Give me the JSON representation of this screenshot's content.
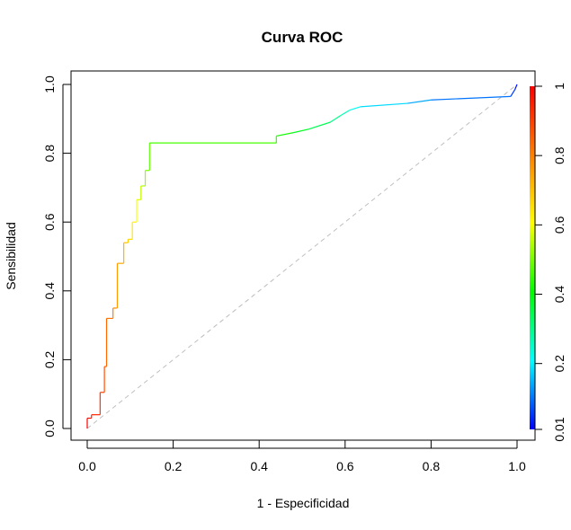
{
  "chart_data": {
    "type": "line",
    "title": "Curva ROC",
    "xlabel": "1 - Especificidad",
    "ylabel": "Sensibilidad",
    "xlim": [
      0,
      1
    ],
    "ylim": [
      0,
      1
    ],
    "x_ticks": [
      "0.0",
      "0.2",
      "0.4",
      "0.6",
      "0.8",
      "1.0"
    ],
    "y_ticks": [
      "0.0",
      "0.2",
      "0.4",
      "0.6",
      "0.8",
      "1.0"
    ],
    "grid": false,
    "diagonal_reference": {
      "x": [
        0,
        1
      ],
      "y": [
        0,
        1
      ],
      "color": "#bebebe",
      "style": "dashed"
    },
    "colorbar": {
      "range": [
        0.01,
        1
      ],
      "ticks": [
        "0.01",
        "0.2",
        "0.4",
        "0.6",
        "0.8",
        "1"
      ],
      "tick_values": [
        0.01,
        0.2,
        0.4,
        0.6,
        0.8,
        1
      ],
      "colormap": "rainbow",
      "position": "right"
    },
    "series": [
      {
        "x": [
          0,
          0,
          0.01,
          0.01,
          0.03,
          0.03,
          0.04,
          0.04,
          0.045,
          0.045,
          0.06,
          0.06,
          0.07,
          0.07,
          0.085,
          0.085,
          0.095,
          0.095,
          0.105,
          0.105,
          0.115,
          0.115,
          0.125,
          0.125,
          0.135,
          0.135,
          0.145,
          0.145,
          0.44,
          0.44,
          0.48,
          0.48,
          0.515,
          0.515,
          0.565,
          0.565,
          0.59,
          0.59,
          0.61,
          0.61,
          0.635,
          0.635,
          0.745,
          0.745,
          0.8,
          0.8,
          0.985,
          0.985,
          0.995,
          0.995,
          1
        ],
        "y": [
          0,
          0.03,
          0.03,
          0.04,
          0.04,
          0.105,
          0.105,
          0.18,
          0.18,
          0.32,
          0.32,
          0.35,
          0.35,
          0.48,
          0.48,
          0.54,
          0.54,
          0.55,
          0.55,
          0.6,
          0.6,
          0.665,
          0.665,
          0.705,
          0.705,
          0.75,
          0.75,
          0.83,
          0.83,
          0.85,
          0.86,
          0.86,
          0.87,
          0.87,
          0.89,
          0.89,
          0.91,
          0.91,
          0.925,
          0.925,
          0.935,
          0.935,
          0.945,
          0.945,
          0.955,
          0.955,
          0.965,
          0.965,
          0.985,
          0.985,
          1
        ],
        "thresholds": [
          1,
          0.98,
          0.96,
          0.94,
          0.92,
          0.9,
          0.88,
          0.86,
          0.84,
          0.82,
          0.8,
          0.78,
          0.76,
          0.74,
          0.72,
          0.7,
          0.68,
          0.66,
          0.64,
          0.62,
          0.6,
          0.58,
          0.56,
          0.54,
          0.52,
          0.5,
          0.48,
          0.46,
          0.44,
          0.42,
          0.4,
          0.38,
          0.36,
          0.34,
          0.32,
          0.3,
          0.28,
          0.26,
          0.24,
          0.22,
          0.2,
          0.18,
          0.16,
          0.14,
          0.12,
          0.1,
          0.08,
          0.06,
          0.04,
          0.02,
          0.01
        ]
      }
    ]
  }
}
